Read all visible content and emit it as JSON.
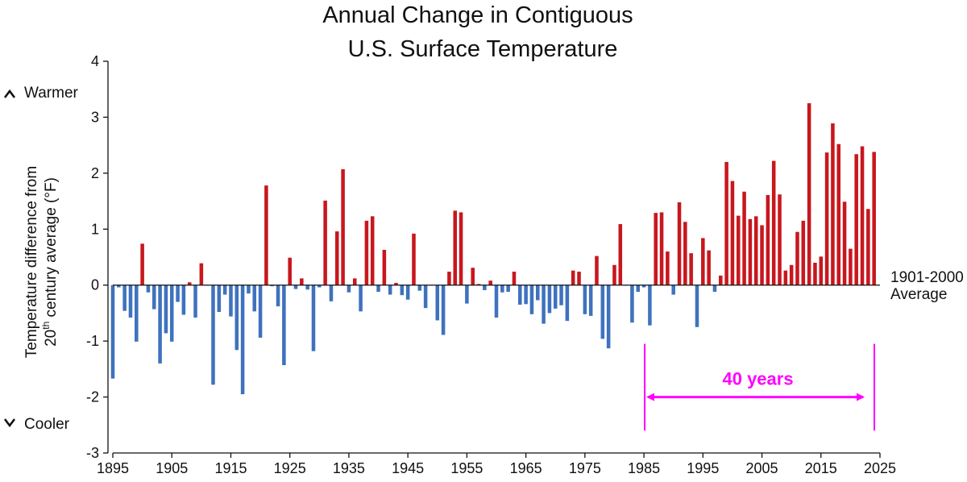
{
  "chart_data": {
    "type": "bar",
    "title_line1": "Annual Change in Contiguous",
    "title_line2": "U.S. Surface Temperature",
    "ylabel_line1": "Temperature difference from",
    "ylabel_line2_pre": "20",
    "ylabel_line2_sup": "th",
    "ylabel_line2_post": " century average (°F)",
    "ylim": [
      -3,
      4
    ],
    "xlim": [
      1895,
      2025
    ],
    "yticks": [
      "4",
      "3",
      "2",
      "1",
      "0",
      "-1",
      "-2",
      "-3"
    ],
    "xticks": [
      "1895",
      "1905",
      "1915",
      "1925",
      "1935",
      "1945",
      "1955",
      "1965",
      "1975",
      "1985",
      "1995",
      "2005",
      "2015",
      "2025"
    ],
    "warmer_label": "Warmer",
    "cooler_label": "Cooler",
    "baseline_label_line1": "1901-2000",
    "baseline_label_line2": "Average",
    "annotation": {
      "text": "40 years",
      "start_year": 1985,
      "end_year": 2024,
      "color": "#ff00ff"
    },
    "colors": {
      "positive": "#c8171e",
      "negative": "#3f72be",
      "axis": "#111111"
    },
    "first_year": 1895,
    "values": [
      -1.67,
      -0.04,
      -0.46,
      -0.58,
      -1.01,
      0.74,
      -0.13,
      -0.43,
      -1.4,
      -0.86,
      -1.01,
      -0.3,
      -0.53,
      0.05,
      -0.58,
      0.39,
      -0.01,
      -1.78,
      -0.48,
      -0.17,
      -0.56,
      -1.16,
      -1.95,
      -0.15,
      -0.47,
      -0.94,
      1.78,
      -0.02,
      -0.38,
      -1.43,
      0.49,
      -0.07,
      0.12,
      -0.08,
      -1.18,
      -0.04,
      1.51,
      -0.29,
      0.96,
      2.07,
      -0.13,
      0.12,
      -0.47,
      1.15,
      1.23,
      -0.12,
      0.63,
      -0.17,
      0.04,
      -0.18,
      -0.26,
      0.92,
      -0.1,
      -0.41,
      -0.01,
      -0.63,
      -0.89,
      0.24,
      1.33,
      1.3,
      -0.33,
      0.31,
      0.02,
      -0.09,
      0.08,
      -0.58,
      -0.13,
      -0.12,
      0.24,
      -0.35,
      -0.34,
      -0.52,
      -0.27,
      -0.69,
      -0.5,
      -0.42,
      -0.36,
      -0.64,
      0.26,
      0.24,
      -0.52,
      -0.55,
      0.52,
      -0.96,
      -1.13,
      0.36,
      1.09,
      -0.01,
      -0.67,
      -0.12,
      -0.04,
      -0.72,
      1.29,
      1.3,
      0.6,
      -0.17,
      1.48,
      1.13,
      0.57,
      -0.75,
      0.84,
      0.62,
      -0.12,
      0.17,
      2.2,
      1.86,
      1.24,
      1.67,
      1.18,
      1.23,
      1.07,
      1.61,
      2.22,
      1.62,
      0.26,
      0.36,
      0.95,
      1.15,
      3.25,
      0.4,
      0.51,
      2.37,
      2.89,
      2.52,
      1.49,
      0.65,
      2.34,
      2.48,
      1.36,
      2.38
    ]
  }
}
